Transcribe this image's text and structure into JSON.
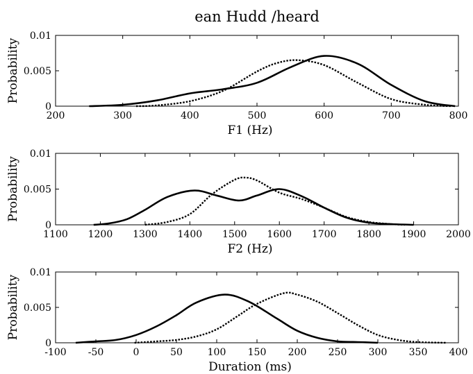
{
  "figure": {
    "title": "ean Hudd /heard"
  },
  "chart_data": [
    {
      "type": "line",
      "title": "ean Hudd /heard",
      "xlabel": "F1 (Hz)",
      "ylabel": "Probability",
      "xlim": [
        200,
        800
      ],
      "ylim": [
        0,
        0.01
      ],
      "xticks": [
        "200",
        "300",
        "400",
        "500",
        "600",
        "700",
        "800"
      ],
      "yticks": [
        "0",
        "0.005",
        "0.01"
      ],
      "grid": false,
      "series": [
        {
          "style": "solid",
          "x": [
            250,
            300,
            350,
            400,
            450,
            500,
            550,
            600,
            650,
            700,
            750,
            795
          ],
          "y": [
            0.0,
            0.0002,
            0.0008,
            0.0018,
            0.0024,
            0.0033,
            0.0055,
            0.0071,
            0.006,
            0.003,
            0.0007,
            0.0
          ]
        },
        {
          "style": "dotted",
          "x": [
            320,
            350,
            400,
            450,
            500,
            530,
            560,
            600,
            650,
            700,
            750,
            790
          ],
          "y": [
            0.0,
            0.0001,
            0.0007,
            0.0022,
            0.0049,
            0.0061,
            0.0065,
            0.0058,
            0.0033,
            0.001,
            0.0002,
            0.0
          ]
        }
      ]
    },
    {
      "type": "line",
      "xlabel": "F2 (Hz)",
      "ylabel": "Probability",
      "xlim": [
        1100,
        2000
      ],
      "ylim": [
        0,
        0.01
      ],
      "xticks": [
        "1100",
        "1200",
        "1300",
        "1400",
        "1500",
        "1600",
        "1700",
        "1800",
        "1900",
        "2000"
      ],
      "yticks": [
        "0",
        "0.005",
        "0.01"
      ],
      "grid": false,
      "series": [
        {
          "style": "solid",
          "x": [
            1185,
            1220,
            1260,
            1300,
            1350,
            1410,
            1460,
            1510,
            1550,
            1600,
            1650,
            1700,
            1750,
            1800,
            1850,
            1900
          ],
          "y": [
            0.0,
            0.0002,
            0.0008,
            0.0021,
            0.0039,
            0.0048,
            0.0041,
            0.0034,
            0.0041,
            0.005,
            0.004,
            0.0024,
            0.001,
            0.0003,
            0.0001,
            0.0
          ]
        },
        {
          "style": "dotted",
          "x": [
            1300,
            1350,
            1400,
            1450,
            1500,
            1525,
            1550,
            1600,
            1650,
            1700,
            1750,
            1800,
            1850,
            1880
          ],
          "y": [
            0.0,
            0.0004,
            0.0015,
            0.0043,
            0.0063,
            0.0066,
            0.0062,
            0.0045,
            0.0036,
            0.0024,
            0.0011,
            0.0004,
            0.0001,
            0.0
          ]
        }
      ]
    },
    {
      "type": "line",
      "xlabel": "Duration (ms)",
      "ylabel": "Probability",
      "xlim": [
        -100,
        400
      ],
      "ylim": [
        0,
        0.01
      ],
      "xticks": [
        "-100",
        "-50",
        "0",
        "50",
        "100",
        "150",
        "200",
        "250",
        "300",
        "350",
        "400"
      ],
      "yticks": [
        "0",
        "0.005",
        "0.01"
      ],
      "grid": false,
      "series": [
        {
          "style": "solid",
          "x": [
            -75,
            -50,
            -25,
            0,
            25,
            50,
            75,
            110,
            140,
            175,
            200,
            225,
            250,
            275,
            300
          ],
          "y": [
            0.0,
            0.0002,
            0.0004,
            0.0011,
            0.0023,
            0.0039,
            0.0057,
            0.0068,
            0.0058,
            0.0034,
            0.0017,
            0.0007,
            0.0002,
            0.0001,
            0.0
          ]
        },
        {
          "style": "dotted",
          "x": [
            -2,
            25,
            50,
            75,
            100,
            125,
            150,
            183,
            200,
            225,
            250,
            275,
            300,
            325,
            350,
            385
          ],
          "y": [
            0.0,
            0.0002,
            0.0004,
            0.0009,
            0.0019,
            0.0037,
            0.0055,
            0.007,
            0.0068,
            0.0058,
            0.0042,
            0.0025,
            0.0011,
            0.0004,
            0.0001,
            0.0
          ]
        }
      ]
    }
  ]
}
